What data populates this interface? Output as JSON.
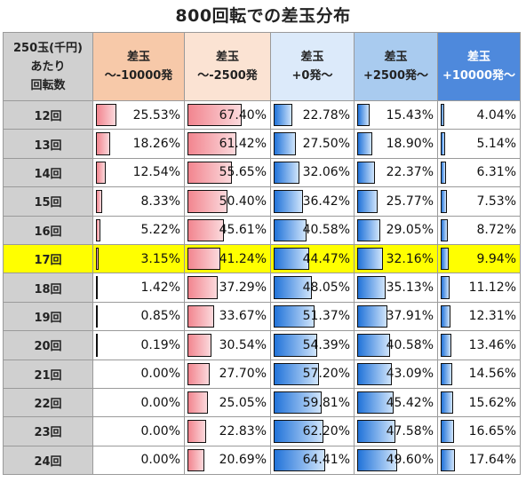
{
  "title": "800回転での差玉分布",
  "chart_data": {
    "type": "table",
    "header_corner": [
      "250玉(千円)",
      "あたり",
      "回転数"
    ],
    "columns": [
      {
        "line1": "差玉",
        "line2": "～-10000発",
        "bar_color": "red"
      },
      {
        "line1": "差玉",
        "line2": "～-2500発",
        "bar_color": "red"
      },
      {
        "line1": "差玉",
        "line2": "+0発～",
        "bar_color": "blue"
      },
      {
        "line1": "差玉",
        "line2": "+2500発～",
        "bar_color": "blue"
      },
      {
        "line1": "差玉",
        "line2": "+10000発～",
        "bar_color": "blue"
      }
    ],
    "highlight_row": "17回",
    "highlight_color": "#ffff00",
    "rows": [
      {
        "label": "12回",
        "values": [
          "25.53%",
          "67.40%",
          "22.78%",
          "15.43%",
          "4.04%"
        ]
      },
      {
        "label": "13回",
        "values": [
          "18.26%",
          "61.42%",
          "27.50%",
          "18.90%",
          "5.14%"
        ]
      },
      {
        "label": "14回",
        "values": [
          "12.54%",
          "55.65%",
          "32.06%",
          "22.37%",
          "6.31%"
        ]
      },
      {
        "label": "15回",
        "values": [
          "8.33%",
          "50.40%",
          "36.42%",
          "25.77%",
          "7.53%"
        ]
      },
      {
        "label": "16回",
        "values": [
          "5.22%",
          "45.61%",
          "40.58%",
          "29.05%",
          "8.72%"
        ]
      },
      {
        "label": "17回",
        "values": [
          "3.15%",
          "41.24%",
          "44.47%",
          "32.16%",
          "9.94%"
        ]
      },
      {
        "label": "18回",
        "values": [
          "1.42%",
          "37.29%",
          "48.05%",
          "35.13%",
          "11.12%"
        ]
      },
      {
        "label": "19回",
        "values": [
          "0.85%",
          "33.67%",
          "51.37%",
          "37.91%",
          "12.31%"
        ]
      },
      {
        "label": "20回",
        "values": [
          "0.19%",
          "30.54%",
          "54.39%",
          "40.58%",
          "13.46%"
        ]
      },
      {
        "label": "21回",
        "values": [
          "0.00%",
          "27.70%",
          "57.20%",
          "43.09%",
          "14.56%"
        ]
      },
      {
        "label": "22回",
        "values": [
          "0.00%",
          "25.05%",
          "59.81%",
          "45.42%",
          "15.62%"
        ]
      },
      {
        "label": "23回",
        "values": [
          "0.00%",
          "22.83%",
          "62.20%",
          "47.58%",
          "16.65%"
        ]
      },
      {
        "label": "24回",
        "values": [
          "0.00%",
          "20.69%",
          "64.41%",
          "49.60%",
          "17.64%"
        ]
      }
    ]
  }
}
